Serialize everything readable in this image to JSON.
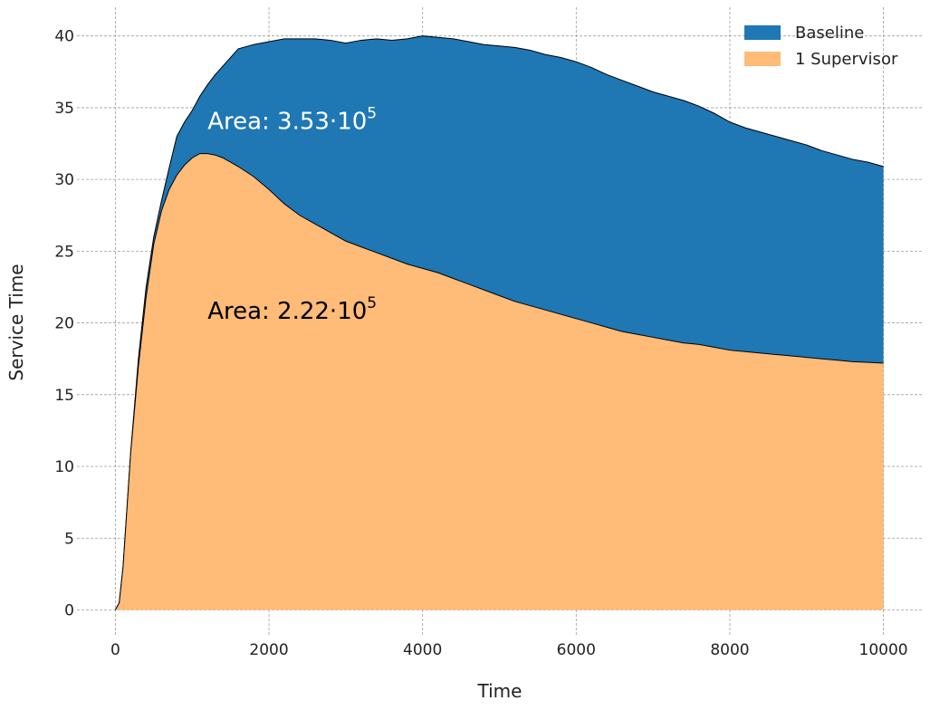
{
  "chart_data": {
    "type": "area",
    "xlabel": "Time",
    "ylabel": "Service Time",
    "xlim": [
      -500,
      10500
    ],
    "ylim": [
      -1.8,
      42
    ],
    "x_ticks": [
      "0",
      "2000",
      "4000",
      "6000",
      "8000",
      "10000"
    ],
    "y_ticks": [
      "0",
      "5",
      "10",
      "15",
      "20",
      "25",
      "30",
      "35",
      "40"
    ],
    "x_tick_values": [
      0,
      2000,
      4000,
      6000,
      8000,
      10000
    ],
    "y_tick_values": [
      0,
      5,
      10,
      15,
      20,
      25,
      30,
      35,
      40
    ],
    "grid": true,
    "legend_position": "top-right",
    "x": [
      0,
      50,
      100,
      200,
      300,
      400,
      500,
      600,
      700,
      800,
      900,
      1000,
      1100,
      1200,
      1300,
      1400,
      1500,
      1600,
      1800,
      2000,
      2200,
      2400,
      2600,
      2800,
      3000,
      3200,
      3400,
      3600,
      3800,
      4000,
      4200,
      4400,
      4600,
      4800,
      5000,
      5200,
      5400,
      5600,
      5800,
      6000,
      6200,
      6400,
      6600,
      6800,
      7000,
      7200,
      7400,
      7600,
      7800,
      8000,
      8200,
      8400,
      8600,
      8800,
      9000,
      9200,
      9400,
      9600,
      9800,
      10000
    ],
    "series": [
      {
        "name": "Baseline",
        "color": "#1f77b4",
        "values": [
          0,
          0.5,
          3,
          11,
          17.5,
          22.5,
          26,
          28.5,
          30.8,
          33,
          34,
          34.8,
          35.8,
          36.6,
          37.3,
          37.9,
          38.5,
          39.1,
          39.4,
          39.6,
          39.8,
          39.8,
          39.8,
          39.7,
          39.5,
          39.7,
          39.8,
          39.7,
          39.8,
          40.0,
          39.9,
          39.8,
          39.6,
          39.4,
          39.3,
          39.2,
          39.0,
          38.7,
          38.5,
          38.2,
          37.8,
          37.3,
          36.9,
          36.5,
          36.1,
          35.8,
          35.5,
          35.1,
          34.6,
          34.0,
          33.6,
          33.3,
          33.0,
          32.7,
          32.4,
          32.0,
          31.7,
          31.4,
          31.2,
          30.9
        ]
      },
      {
        "name": "1 Supervisor",
        "color": "#ffbb78",
        "values": [
          0,
          0.5,
          3,
          11,
          17,
          21.8,
          25.5,
          27.8,
          29.3,
          30.3,
          31.0,
          31.5,
          31.8,
          31.8,
          31.7,
          31.5,
          31.2,
          30.9,
          30.2,
          29.3,
          28.3,
          27.5,
          26.9,
          26.3,
          25.7,
          25.3,
          24.9,
          24.5,
          24.1,
          23.8,
          23.5,
          23.1,
          22.7,
          22.3,
          21.9,
          21.5,
          21.2,
          20.9,
          20.6,
          20.3,
          20.0,
          19.7,
          19.4,
          19.2,
          19.0,
          18.8,
          18.6,
          18.5,
          18.3,
          18.1,
          18.0,
          17.9,
          17.8,
          17.7,
          17.6,
          17.5,
          17.4,
          17.3,
          17.25,
          17.2
        ]
      }
    ],
    "annotations": [
      {
        "text": "Area: 3.53·10",
        "superscript": "5",
        "x": 1200,
        "y": 33.5,
        "color": "#ffffff"
      },
      {
        "text": "Area: 2.22·10",
        "superscript": "5",
        "x": 1200,
        "y": 20.3,
        "color": "#000000"
      }
    ]
  }
}
